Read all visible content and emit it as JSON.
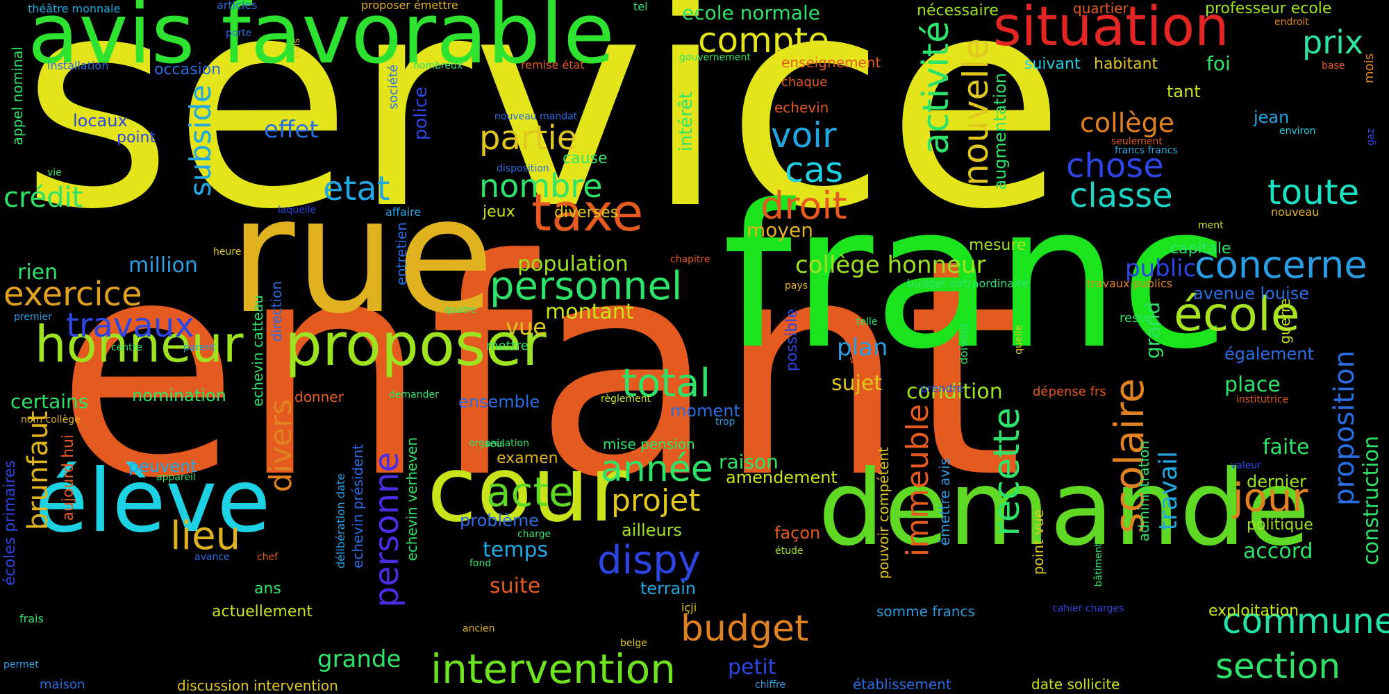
{
  "title": "",
  "words": [
    {
      "text": "service",
      "color": "#e3e41a",
      "vertical": false
    },
    {
      "text": "enfant",
      "color": "#e55a1e",
      "vertical": false
    },
    {
      "text": "franc",
      "color": "#1be31e",
      "vertical": false
    },
    {
      "text": "rue",
      "color": "#e0b21f",
      "vertical": false
    },
    {
      "text": "avis favorable",
      "color": "#2ee330",
      "vertical": false
    },
    {
      "text": "demande",
      "color": "#5fd923",
      "vertical": false
    },
    {
      "text": "cour",
      "color": "#c9e41a",
      "vertical": false
    },
    {
      "text": "élève",
      "color": "#1cd2e3",
      "vertical": false
    },
    {
      "text": "situation",
      "color": "#e32524",
      "vertical": false
    },
    {
      "text": "proposer",
      "color": "#9ee320",
      "vertical": false
    },
    {
      "text": "honneur",
      "color": "#9ee320",
      "vertical": false
    },
    {
      "text": "taxe",
      "color": "#e55a1e",
      "vertical": false
    },
    {
      "text": "personnel",
      "color": "#2ee36a",
      "vertical": false
    },
    {
      "text": "concerne",
      "color": "#2a9de3",
      "vertical": false
    },
    {
      "text": "école",
      "color": "#a7e321",
      "vertical": false
    },
    {
      "text": "commune",
      "color": "#21e3a8",
      "vertical": false
    },
    {
      "text": "section",
      "color": "#2ee36a",
      "vertical": false
    },
    {
      "text": "intervention",
      "color": "#6ee31f",
      "vertical": false
    },
    {
      "text": "compte",
      "color": "#e3e41a",
      "vertical": false
    },
    {
      "text": "prix",
      "color": "#2ee3a0",
      "vertical": false
    },
    {
      "text": "exercice",
      "color": "#e0a21f",
      "vertical": false
    },
    {
      "text": "travaux",
      "color": "#2d46e3",
      "vertical": false
    },
    {
      "text": "crédit",
      "color": "#2ee36a",
      "vertical": false
    },
    {
      "text": "partie",
      "color": "#e0c81f",
      "vertical": false
    },
    {
      "text": "nombre",
      "color": "#2ee36a",
      "vertical": false
    },
    {
      "text": "droit",
      "color": "#e55a1e",
      "vertical": false
    },
    {
      "text": "voir",
      "color": "#21a8e3",
      "vertical": false
    },
    {
      "text": "cas",
      "color": "#1cd2e3",
      "vertical": false
    },
    {
      "text": "etat",
      "color": "#21a8e3",
      "vertical": false
    },
    {
      "text": "effet",
      "color": "#2a6ee3",
      "vertical": false
    },
    {
      "text": "chose",
      "color": "#2d46e3",
      "vertical": false
    },
    {
      "text": "classe",
      "color": "#1cd2c3",
      "vertical": false
    },
    {
      "text": "toute",
      "color": "#1ce3c3",
      "vertical": false
    },
    {
      "text": "collège",
      "color": "#e0821f",
      "vertical": false
    },
    {
      "text": "total",
      "color": "#2ee36a",
      "vertical": false
    },
    {
      "text": "acte",
      "color": "#5fd923",
      "vertical": false
    },
    {
      "text": "année",
      "color": "#2ee36a",
      "vertical": false
    },
    {
      "text": "projet",
      "color": "#e0c81f",
      "vertical": false
    },
    {
      "text": "dispy",
      "color": "#2d46e3",
      "vertical": false
    },
    {
      "text": "budget",
      "color": "#e0821f",
      "vertical": false
    },
    {
      "text": "lieu",
      "color": "#e0b21f",
      "vertical": false
    },
    {
      "text": "jour",
      "color": "#e0821f",
      "vertical": false
    },
    {
      "text": "collège honneur",
      "color": "#9ee320",
      "vertical": false
    },
    {
      "text": "population",
      "color": "#9ee320",
      "vertical": false
    },
    {
      "text": "montant",
      "color": "#c9e41a",
      "vertical": false
    },
    {
      "text": "vue",
      "color": "#e0c81f",
      "vertical": false
    },
    {
      "text": "plan",
      "color": "#2a9de3",
      "vertical": false
    },
    {
      "text": "sujet",
      "color": "#e0c81f",
      "vertical": false
    },
    {
      "text": "condition",
      "color": "#9ee320",
      "vertical": false
    },
    {
      "text": "public",
      "color": "#2d46e3",
      "vertical": false
    },
    {
      "text": "million",
      "color": "#2a9de3",
      "vertical": false
    },
    {
      "text": "rien",
      "color": "#2ee36a",
      "vertical": false
    },
    {
      "text": "certains",
      "color": "#2ee36a",
      "vertical": false
    },
    {
      "text": "nomination",
      "color": "#2ee36a",
      "vertical": false
    },
    {
      "text": "ensemble",
      "color": "#2a6ee3",
      "vertical": false
    },
    {
      "text": "moment",
      "color": "#2a6ee3",
      "vertical": false
    },
    {
      "text": "raison",
      "color": "#2ee36a",
      "vertical": false
    },
    {
      "text": "amendement",
      "color": "#c9e41a",
      "vertical": false
    },
    {
      "text": "examen",
      "color": "#e0b21f",
      "vertical": false
    },
    {
      "text": "problème",
      "color": "#2a6ee3",
      "vertical": false
    },
    {
      "text": "temps",
      "color": "#21a8e3",
      "vertical": false
    },
    {
      "text": "ailleurs",
      "color": "#9ee320",
      "vertical": false
    },
    {
      "text": "suite",
      "color": "#e55a1e",
      "vertical": false
    },
    {
      "text": "terrain",
      "color": "#21a8e3",
      "vertical": false
    },
    {
      "text": "actuellement",
      "color": "#c9e41a",
      "vertical": false
    },
    {
      "text": "grande",
      "color": "#2ee36a",
      "vertical": false
    },
    {
      "text": "petit",
      "color": "#2d46e3",
      "vertical": false
    },
    {
      "text": "ans",
      "color": "#2ee36a",
      "vertical": false
    },
    {
      "text": "peuvent",
      "color": "#21a8e3",
      "vertical": false
    },
    {
      "text": "place",
      "color": "#2ee36a",
      "vertical": false
    },
    {
      "text": "faite",
      "color": "#2ee36a",
      "vertical": false
    },
    {
      "text": "accord",
      "color": "#2ee36a",
      "vertical": false
    },
    {
      "text": "dernier",
      "color": "#9ee320",
      "vertical": false
    },
    {
      "text": "politique",
      "color": "#9ee320",
      "vertical": false
    },
    {
      "text": "exploitation",
      "color": "#c9e41a",
      "vertical": false
    },
    {
      "text": "également",
      "color": "#2a6ee3",
      "vertical": false
    },
    {
      "text": "avenue louise",
      "color": "#2a6ee3",
      "vertical": false
    },
    {
      "text": "capitale",
      "color": "#2ee36a",
      "vertical": false
    },
    {
      "text": "mesure",
      "color": "#9ee320",
      "vertical": false
    },
    {
      "text": "moyen",
      "color": "#e0b21f",
      "vertical": false
    },
    {
      "text": "diverses",
      "color": "#e0c81f",
      "vertical": false
    },
    {
      "text": "jeux",
      "color": "#c9e41a",
      "vertical": false
    },
    {
      "text": "cause",
      "color": "#2ee36a",
      "vertical": false
    },
    {
      "text": "tant",
      "color": "#c9e41a",
      "vertical": false
    },
    {
      "text": "suivant",
      "color": "#1cd2e3",
      "vertical": false
    },
    {
      "text": "habitant",
      "color": "#e0c81f",
      "vertical": false
    },
    {
      "text": "foi",
      "color": "#2ee36a",
      "vertical": false
    },
    {
      "text": "jean",
      "color": "#21a8e3",
      "vertical": false
    },
    {
      "text": "ecole normale",
      "color": "#2ee36a",
      "vertical": false
    },
    {
      "text": "nécessaire",
      "color": "#9ee320",
      "vertical": false
    },
    {
      "text": "quartier",
      "color": "#e55a1e",
      "vertical": false
    },
    {
      "text": "professeur ecole",
      "color": "#9ee320",
      "vertical": false
    },
    {
      "text": "enseignement",
      "color": "#e55a1e",
      "vertical": false
    },
    {
      "text": "occasion",
      "color": "#2a6ee3",
      "vertical": false
    },
    {
      "text": "locaux",
      "color": "#2d46e3",
      "vertical": false
    },
    {
      "text": "point",
      "color": "#2d46e3",
      "vertical": false
    },
    {
      "text": "installation",
      "color": "#2a6ee3",
      "vertical": false
    },
    {
      "text": "théâtre monnaie",
      "color": "#21a8e3",
      "vertical": false
    },
    {
      "text": "articles",
      "color": "#2a6ee3",
      "vertical": false
    },
    {
      "text": "proposer émettre",
      "color": "#e0b21f",
      "vertical": false
    },
    {
      "text": "tel",
      "color": "#2ee36a",
      "vertical": false
    },
    {
      "text": "endroit",
      "color": "#e0821f",
      "vertical": false
    },
    {
      "text": "porte",
      "color": "#2a6ee3",
      "vertical": false
    },
    {
      "text": "nombreux",
      "color": "#2ee36a",
      "vertical": false
    },
    {
      "text": "remise état",
      "color": "#e55a1e",
      "vertical": false
    },
    {
      "text": "gouvernement",
      "color": "#2ee36a",
      "vertical": false
    },
    {
      "text": "base",
      "color": "#e55a1e",
      "vertical": false
    },
    {
      "text": "chaque",
      "color": "#e55a1e",
      "vertical": false
    },
    {
      "text": "echevin",
      "color": "#e55a1e",
      "vertical": false
    },
    {
      "text": "nouveau mandat",
      "color": "#2a6ee3",
      "vertical": false
    },
    {
      "text": "disposition",
      "color": "#2a6ee3",
      "vertical": false
    },
    {
      "text": "seulement",
      "color": "#e55a1e",
      "vertical": false
    },
    {
      "text": "francs francs",
      "color": "#21a8e3",
      "vertical": false
    },
    {
      "text": "environ",
      "color": "#1cd2e3",
      "vertical": false
    },
    {
      "text": "nouveau",
      "color": "#e0b21f",
      "vertical": false
    },
    {
      "text": "ment",
      "color": "#c9e41a",
      "vertical": false
    },
    {
      "text": "affaire",
      "color": "#21a8e3",
      "vertical": false
    },
    {
      "text": "laquelle",
      "color": "#2d46e3",
      "vertical": false
    },
    {
      "text": "heure",
      "color": "#e0c81f",
      "vertical": false
    },
    {
      "text": "chapitre",
      "color": "#e55a1e",
      "vertical": false
    },
    {
      "text": "pays",
      "color": "#e0b21f",
      "vertical": false
    },
    {
      "text": "budget extraordinaire",
      "color": "#2ee36a",
      "vertical": false
    },
    {
      "text": "travaux publics",
      "color": "#e0821f",
      "vertical": false
    },
    {
      "text": "quatre",
      "color": "#2ee36a",
      "vertical": false
    },
    {
      "text": "premier",
      "color": "#2a9de3",
      "vertical": false
    },
    {
      "text": "centre",
      "color": "#2ee36a",
      "vertical": false
    },
    {
      "text": "parent",
      "color": "#2a9de3",
      "vertical": false
    },
    {
      "text": "mettre",
      "color": "#2ee36a",
      "vertical": false
    },
    {
      "text": "telle",
      "color": "#2ee36a",
      "vertical": false
    },
    {
      "text": "voie",
      "color": "#e55a1e",
      "vertical": false
    },
    {
      "text": "reste",
      "color": "#2ee36a",
      "vertical": false
    },
    {
      "text": "donner",
      "color": "#e55a1e",
      "vertical": false
    },
    {
      "text": "demander",
      "color": "#2ee36a",
      "vertical": false
    },
    {
      "text": "règlement",
      "color": "#c9e41a",
      "vertical": false
    },
    {
      "text": "prendre",
      "color": "#2d46e3",
      "vertical": false
    },
    {
      "text": "dépense frs",
      "color": "#e55a1e",
      "vertical": false
    },
    {
      "text": "institutrice",
      "color": "#e55a1e",
      "vertical": false
    },
    {
      "text": "nom collège",
      "color": "#e0b21f",
      "vertical": false
    },
    {
      "text": "trop",
      "color": "#2a9de3",
      "vertical": false
    },
    {
      "text": "seul",
      "color": "#2ee36a",
      "vertical": false
    },
    {
      "text": "organisation",
      "color": "#2ee36a",
      "vertical": false
    },
    {
      "text": "mise pension",
      "color": "#2ee36a",
      "vertical": false
    },
    {
      "text": "appareil",
      "color": "#2ee36a",
      "vertical": false
    },
    {
      "text": "valeur",
      "color": "#2d46e3",
      "vertical": false
    },
    {
      "text": "charge",
      "color": "#2ee36a",
      "vertical": false
    },
    {
      "text": "avance",
      "color": "#2a6ee3",
      "vertical": false
    },
    {
      "text": "chef",
      "color": "#e55a1e",
      "vertical": false
    },
    {
      "text": "fond",
      "color": "#2ee36a",
      "vertical": false
    },
    {
      "text": "façon",
      "color": "#e55a1e",
      "vertical": false
    },
    {
      "text": "étude",
      "color": "#9ee320",
      "vertical": false
    },
    {
      "text": "frais",
      "color": "#2ee36a",
      "vertical": false
    },
    {
      "text": "ancien",
      "color": "#e0b21f",
      "vertical": false
    },
    {
      "text": "içji",
      "color": "#e0c81f",
      "vertical": false
    },
    {
      "text": "somme francs",
      "color": "#2a9de3",
      "vertical": false
    },
    {
      "text": "cahier charges",
      "color": "#2d46e3",
      "vertical": false
    },
    {
      "text": "belge",
      "color": "#e0c81f",
      "vertical": false
    },
    {
      "text": "chiffre",
      "color": "#2a9de3",
      "vertical": false
    },
    {
      "text": "établissement",
      "color": "#2a6ee3",
      "vertical": false
    },
    {
      "text": "date sollicite",
      "color": "#c9e41a",
      "vertical": false
    },
    {
      "text": "discussion intervention",
      "color": "#e0c81f",
      "vertical": false
    },
    {
      "text": "maison",
      "color": "#2a6ee3",
      "vertical": false
    },
    {
      "text": "permet",
      "color": "#2a9de3",
      "vertical": false
    },
    {
      "text": "subside",
      "color": "#21a8e3",
      "vertical": true
    },
    {
      "text": "brunfaut",
      "color": "#e0b21f",
      "vertical": true
    },
    {
      "text": "divers",
      "color": "#e0821f",
      "vertical": true
    },
    {
      "text": "personne",
      "color": "#4a2ee3",
      "vertical": true
    },
    {
      "text": "activité",
      "color": "#2ee36a",
      "vertical": true
    },
    {
      "text": "nouvelle",
      "color": "#e0c81f",
      "vertical": true
    },
    {
      "text": "augmentation",
      "color": "#2ee36a",
      "vertical": true
    },
    {
      "text": "intérêt",
      "color": "#2ee36a",
      "vertical": true
    },
    {
      "text": "immeuble",
      "color": "#e55a1e",
      "vertical": true
    },
    {
      "text": "recette",
      "color": "#2ee36a",
      "vertical": true
    },
    {
      "text": "scolaire",
      "color": "#e0821f",
      "vertical": true
    },
    {
      "text": "travail",
      "color": "#21a8e3",
      "vertical": true
    },
    {
      "text": "proposition",
      "color": "#2a6ee3",
      "vertical": true
    },
    {
      "text": "construction",
      "color": "#2ee36a",
      "vertical": true
    },
    {
      "text": "grand",
      "color": "#2ee36a",
      "vertical": true
    },
    {
      "text": "administration",
      "color": "#2ee36a",
      "vertical": true
    },
    {
      "text": "police",
      "color": "#2d46e3",
      "vertical": true
    },
    {
      "text": "société",
      "color": "#2a6ee3",
      "vertical": true
    },
    {
      "text": "entretien",
      "color": "#2a6ee3",
      "vertical": true
    },
    {
      "text": "echevin catteau",
      "color": "#2ee36a",
      "vertical": true
    },
    {
      "text": "direction",
      "color": "#2a6ee3",
      "vertical": true
    },
    {
      "text": "echevin président",
      "color": "#2a6ee3",
      "vertical": true
    },
    {
      "text": "echevin verheven",
      "color": "#2ee36a",
      "vertical": true
    },
    {
      "text": "délibération date",
      "color": "#2a9de3",
      "vertical": true
    },
    {
      "text": "aujourd hui",
      "color": "#e55a1e",
      "vertical": true
    },
    {
      "text": "écoles primaires",
      "color": "#2d46e3",
      "vertical": true
    },
    {
      "text": "appel nominal",
      "color": "#2ee36a",
      "vertical": true
    },
    {
      "text": "vie",
      "color": "#2ee36a",
      "vertical": false
    },
    {
      "text": "puis",
      "color": "#e0c81f",
      "vertical": true
    },
    {
      "text": "possible",
      "color": "#2d46e3",
      "vertical": true
    },
    {
      "text": "pouvoir compétent",
      "color": "#e0c81f",
      "vertical": true
    },
    {
      "text": "émettre avis",
      "color": "#2a9de3",
      "vertical": true
    },
    {
      "text": "point vue",
      "color": "#e0c81f",
      "vertical": true
    },
    {
      "text": "doivent",
      "color": "#2ee36a",
      "vertical": true
    },
    {
      "text": "quelle",
      "color": "#e0c81f",
      "vertical": true
    },
    {
      "text": "bâtiment",
      "color": "#2ee36a",
      "vertical": true
    },
    {
      "text": "guerre",
      "color": "#c9e41a",
      "vertical": true
    },
    {
      "text": "mois",
      "color": "#e0821f",
      "vertical": true
    },
    {
      "text": "gaz",
      "color": "#2d46e3",
      "vertical": true
    }
  ]
}
